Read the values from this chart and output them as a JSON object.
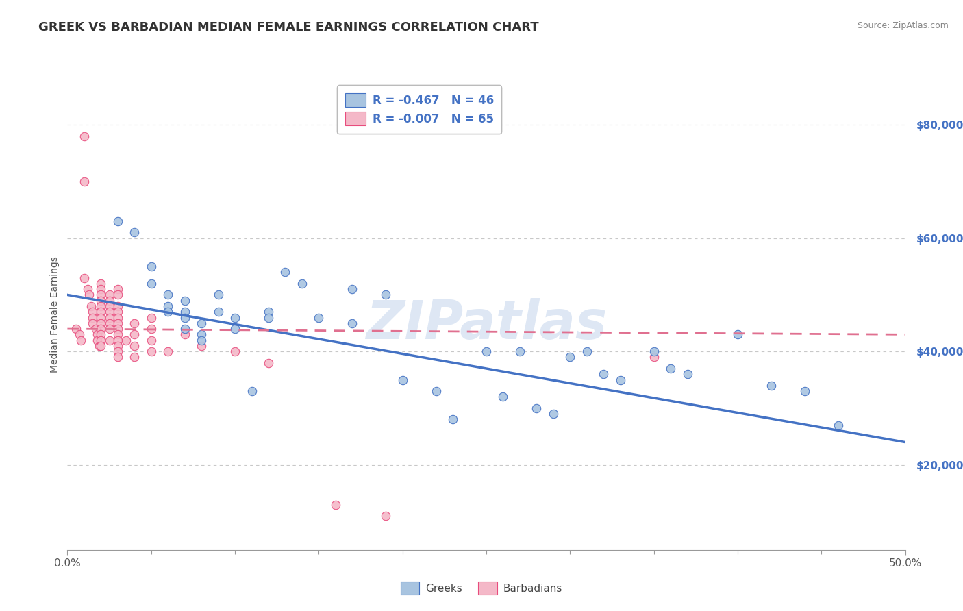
{
  "title": "GREEK VS BARBADIAN MEDIAN FEMALE EARNINGS CORRELATION CHART",
  "source": "Source: ZipAtlas.com",
  "ylabel": "Median Female Earnings",
  "watermark": "ZIPatlas",
  "ytick_labels": [
    "$20,000",
    "$40,000",
    "$60,000",
    "$80,000"
  ],
  "ytick_values": [
    20000,
    40000,
    60000,
    80000
  ],
  "xlim": [
    0.0,
    0.5
  ],
  "ylim": [
    5000,
    88000
  ],
  "blue_scatter": {
    "x": [
      0.03,
      0.04,
      0.05,
      0.05,
      0.06,
      0.06,
      0.06,
      0.07,
      0.07,
      0.07,
      0.07,
      0.08,
      0.08,
      0.08,
      0.09,
      0.09,
      0.1,
      0.1,
      0.11,
      0.12,
      0.12,
      0.13,
      0.14,
      0.15,
      0.17,
      0.17,
      0.19,
      0.2,
      0.22,
      0.23,
      0.25,
      0.26,
      0.27,
      0.28,
      0.29,
      0.3,
      0.31,
      0.32,
      0.33,
      0.35,
      0.36,
      0.37,
      0.4,
      0.42,
      0.44,
      0.46
    ],
    "y": [
      63000,
      61000,
      55000,
      52000,
      50000,
      48000,
      47000,
      49000,
      47000,
      46000,
      44000,
      45000,
      43000,
      42000,
      50000,
      47000,
      44000,
      46000,
      33000,
      47000,
      46000,
      54000,
      52000,
      46000,
      45000,
      51000,
      50000,
      35000,
      33000,
      28000,
      40000,
      32000,
      40000,
      30000,
      29000,
      39000,
      40000,
      36000,
      35000,
      40000,
      37000,
      36000,
      43000,
      34000,
      33000,
      27000
    ]
  },
  "pink_scatter": {
    "x": [
      0.005,
      0.007,
      0.008,
      0.01,
      0.01,
      0.01,
      0.012,
      0.013,
      0.014,
      0.015,
      0.015,
      0.015,
      0.017,
      0.018,
      0.018,
      0.019,
      0.02,
      0.02,
      0.02,
      0.02,
      0.02,
      0.02,
      0.02,
      0.02,
      0.02,
      0.02,
      0.02,
      0.02,
      0.025,
      0.025,
      0.025,
      0.025,
      0.025,
      0.025,
      0.025,
      0.025,
      0.03,
      0.03,
      0.03,
      0.03,
      0.03,
      0.03,
      0.03,
      0.03,
      0.03,
      0.03,
      0.03,
      0.03,
      0.035,
      0.04,
      0.04,
      0.04,
      0.04,
      0.05,
      0.05,
      0.05,
      0.05,
      0.06,
      0.07,
      0.08,
      0.1,
      0.12,
      0.16,
      0.19,
      0.35
    ],
    "y": [
      44000,
      43000,
      42000,
      78000,
      70000,
      53000,
      51000,
      50000,
      48000,
      47000,
      46000,
      45000,
      44000,
      43000,
      42000,
      41000,
      52000,
      51000,
      50000,
      49000,
      48000,
      47000,
      46000,
      45000,
      44000,
      43000,
      42000,
      41000,
      50000,
      49000,
      48000,
      47000,
      46000,
      45000,
      44000,
      42000,
      51000,
      50000,
      48000,
      47000,
      46000,
      45000,
      44000,
      43000,
      42000,
      41000,
      40000,
      39000,
      42000,
      45000,
      43000,
      41000,
      39000,
      46000,
      44000,
      42000,
      40000,
      40000,
      43000,
      41000,
      40000,
      38000,
      13000,
      11000,
      39000
    ]
  },
  "blue_line_x": [
    0.0,
    0.5
  ],
  "blue_line_y": [
    50000,
    24000
  ],
  "pink_line_x": [
    0.0,
    0.5
  ],
  "pink_line_y": [
    44000,
    43000
  ],
  "blue_color": "#4472c4",
  "pink_color": "#e84c7d",
  "blue_scatter_color": "#a8c4e0",
  "pink_scatter_color": "#f4b8c8",
  "blue_line_color": "#4472c4",
  "pink_line_color": "#e07090",
  "grid_color": "#c8c8c8",
  "background_color": "#ffffff",
  "title_fontsize": 13,
  "axis_label_fontsize": 10,
  "tick_fontsize": 11,
  "watermark_fontsize": 56,
  "watermark_color": "#c8d8ee",
  "watermark_alpha": 0.6
}
